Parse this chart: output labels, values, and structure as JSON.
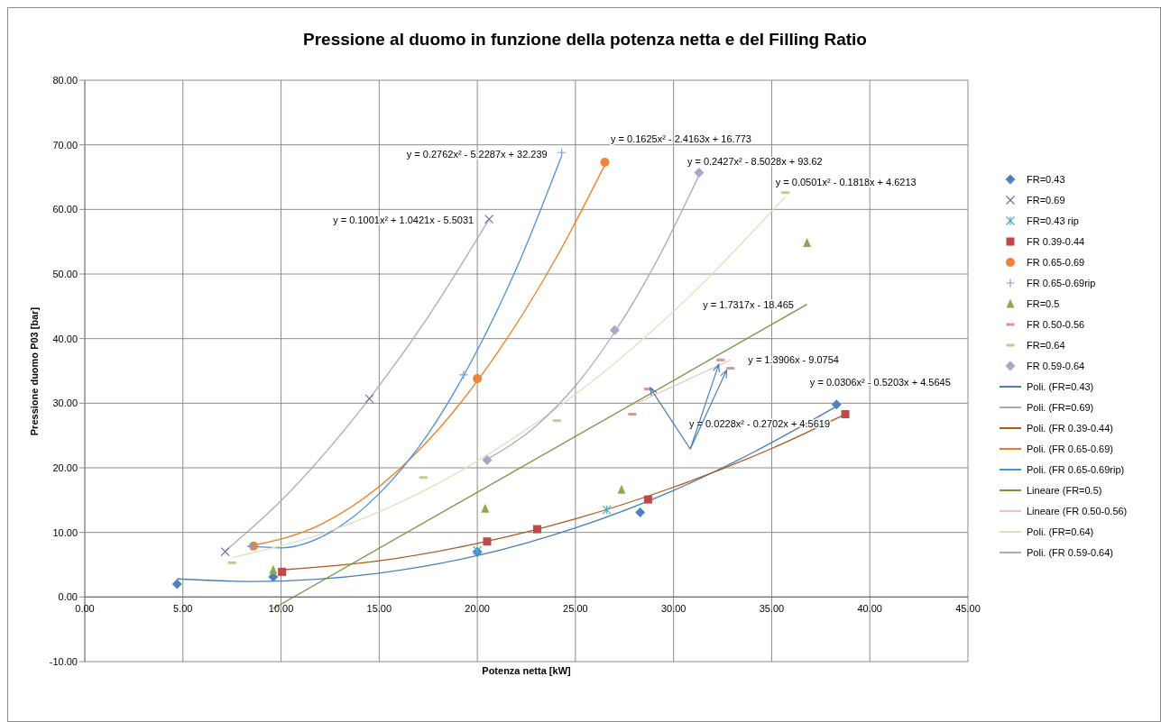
{
  "chart_data": {
    "type": "scatter",
    "title": "Pressione al duomo in funzione della potenza netta e del Filling Ratio",
    "xlabel": "Potenza netta [kW]",
    "ylabel": "Pressione duomo P03 [bar]",
    "xlim": [
      0,
      45
    ],
    "ylim": [
      -10,
      80
    ],
    "xticks": [
      {
        "value": 0,
        "label": "0.00"
      },
      {
        "value": 5,
        "label": "5.00"
      },
      {
        "value": 10,
        "label": "10.00"
      },
      {
        "value": 15,
        "label": "15.00"
      },
      {
        "value": 20,
        "label": "20.00"
      },
      {
        "value": 25,
        "label": "25.00"
      },
      {
        "value": 30,
        "label": "30.00"
      },
      {
        "value": 35,
        "label": "35.00"
      },
      {
        "value": 40,
        "label": "40.00"
      },
      {
        "value": 45,
        "label": "45.00"
      }
    ],
    "yticks": [
      {
        "value": -10,
        "label": "-10.00"
      },
      {
        "value": 0,
        "label": "0.00"
      },
      {
        "value": 10,
        "label": "10.00"
      },
      {
        "value": 20,
        "label": "20.00"
      },
      {
        "value": 30,
        "label": "30.00"
      },
      {
        "value": 40,
        "label": "40.00"
      },
      {
        "value": 50,
        "label": "50.00"
      },
      {
        "value": 60,
        "label": "60.00"
      },
      {
        "value": 70,
        "label": "70.00"
      },
      {
        "value": 80,
        "label": "80.00"
      }
    ],
    "grid": true,
    "legend": "right",
    "series": [
      {
        "name": "FR=0.43",
        "marker": "diamond",
        "color": "#4f81bd",
        "x": [
          4.7,
          9.6,
          20.0,
          28.3,
          38.3
        ],
        "values": [
          2.0,
          3.1,
          7.0,
          13.1,
          29.8
        ]
      },
      {
        "name": "FR=0.69",
        "marker": "cross",
        "color": "#7e649e",
        "x": [
          7.15,
          14.5,
          20.6
        ],
        "values": [
          7.0,
          30.7,
          58.5
        ]
      },
      {
        "name": "FR=0.43 rip",
        "marker": "cross",
        "color": "#4bacc6",
        "x": [
          20.0,
          26.6
        ],
        "values": [
          7.2,
          13.5
        ]
      },
      {
        "name": "FR 0.39-0.44",
        "marker": "square",
        "color": "#be4b48",
        "x": [
          10.05,
          20.5,
          23.05,
          28.7,
          38.75
        ],
        "values": [
          3.9,
          8.6,
          10.5,
          15.1,
          28.3
        ]
      },
      {
        "name": "FR 0.65-0.69",
        "marker": "circle",
        "color": "#ec8537",
        "x": [
          8.6,
          20.0,
          26.5
        ],
        "values": [
          7.9,
          33.8,
          67.3
        ]
      },
      {
        "name": "FR 0.65-0.69rip",
        "marker": "cross",
        "color": "#7ba0d4",
        "x": [
          8.5,
          19.3,
          24.3
        ],
        "values": [
          7.8,
          34.4,
          68.8
        ]
      },
      {
        "name": "FR=0.5",
        "marker": "triangle",
        "color": "#8aac4a",
        "x": [
          9.6,
          20.4,
          27.35,
          36.8
        ],
        "values": [
          4.2,
          13.7,
          16.6,
          54.8
        ]
      },
      {
        "name": "FR 0.50-0.56",
        "color": "#d99694",
        "x": [
          27.9,
          28.7,
          32.4,
          32.9
        ],
        "values": [
          28.3,
          32.2,
          36.7,
          35.4
        ]
      },
      {
        "name": "FR=0.64",
        "color": "#b9d08d",
        "x": [
          7.5,
          17.25,
          24.05,
          35.7
        ],
        "values": [
          5.3,
          18.5,
          27.3,
          62.6
        ]
      },
      {
        "name": "FR 0.59-0.64",
        "marker": "diamond",
        "color": "#b3a2c7",
        "x": [
          20.5,
          27.0,
          31.3
        ],
        "values": [
          21.2,
          41.3,
          65.7
        ]
      },
      {
        "name": "Poli. (FR=0.43)",
        "type": "line",
        "marker": "none",
        "color": "#4a7ebb",
        "x": [
          4.7,
          8.5,
          15,
          20,
          25,
          30,
          34,
          38.3
        ],
        "values": [
          2.8,
          2.4,
          3.7,
          6.4,
          10.7,
          16.5,
          22.3,
          29.5
        ]
      },
      {
        "name": "Poli. (FR=0.69)",
        "type": "line",
        "marker": "none",
        "color": "#b3a2c7",
        "x": [
          7.15,
          10,
          12.5,
          15,
          17.5,
          20.6
        ],
        "values": [
          7.1,
          14.9,
          23.2,
          32.7,
          43.4,
          58.5
        ]
      },
      {
        "name": "Poli. (FR 0.39-0.44)",
        "type": "line",
        "marker": "none",
        "color": "#b0581c",
        "x": [
          10.05,
          15,
          20,
          25,
          30,
          35,
          38.75
        ],
        "values": [
          4.2,
          5.6,
          8.3,
          12.1,
          17.0,
          23.0,
          28.3
        ]
      },
      {
        "name": "Poli. (FR 0.65-0.69)",
        "type": "line",
        "marker": "none",
        "color": "#f07c1c",
        "x": [
          8.6,
          12,
          15,
          18,
          21,
          24,
          26.5
        ],
        "values": [
          8.0,
          11.2,
          17.1,
          25.9,
          37.7,
          52.4,
          66.9
        ]
      },
      {
        "name": "Poli. (FR 0.65-0.69rip)",
        "type": "line",
        "marker": "none",
        "color": "#4a8fe0",
        "x": [
          8.3,
          10,
          12.5,
          15,
          17.5,
          20,
          22,
          24.3
        ],
        "values": [
          7.9,
          7.6,
          10.0,
          16.0,
          25.3,
          38.2,
          50.9,
          68.3
        ]
      },
      {
        "name": "Lineare (FR=0.5)",
        "type": "line",
        "marker": "none",
        "color": "#77933c",
        "x": [
          9.6,
          36.8
        ],
        "values": [
          -1.8,
          45.3
        ]
      },
      {
        "name": "Lineare (FR 0.50-0.56)",
        "type": "line",
        "marker": "none",
        "color": "#f2c0c0",
        "x": [
          27.9,
          32.9
        ],
        "values": [
          29.7,
          36.7
        ]
      },
      {
        "name": "Poli. (FR=0.64)",
        "type": "line",
        "marker": "none",
        "color": "#d7e4bd",
        "x": [
          7.5,
          12,
          17,
          22,
          27,
          31,
          35.7
        ],
        "values": [
          6.1,
          9.7,
          16.0,
          24.9,
          36.2,
          47.1,
          62.0
        ]
      },
      {
        "name": "Poli. (FR 0.59-0.64)",
        "type": "line",
        "marker": "none",
        "color": "#b3a2c7",
        "x": [
          20.5,
          23,
          25,
          27,
          29,
          31.3
        ],
        "values": [
          21.3,
          26.5,
          32.7,
          41.0,
          51.2,
          65.3
        ]
      }
    ],
    "annotations": [
      "y = 0.2762x² - 5.2287x + 32.239",
      "y = 0.1625x² - 2.4163x + 16.773",
      "y = 0.2427x² - 8.5028x + 93.62",
      "y = 0.0501x² - 0.1818x + 4.6213",
      "y = 0.1001x² + 1.0421x - 5.5031",
      "y = 1.7317x - 18.465",
      "y = 1.3906x - 9.0754",
      "y = 0.0306x² - 0.5203x + 4.5645",
      "y = 0.0228x² - 0.2702x + 4.5619"
    ]
  }
}
